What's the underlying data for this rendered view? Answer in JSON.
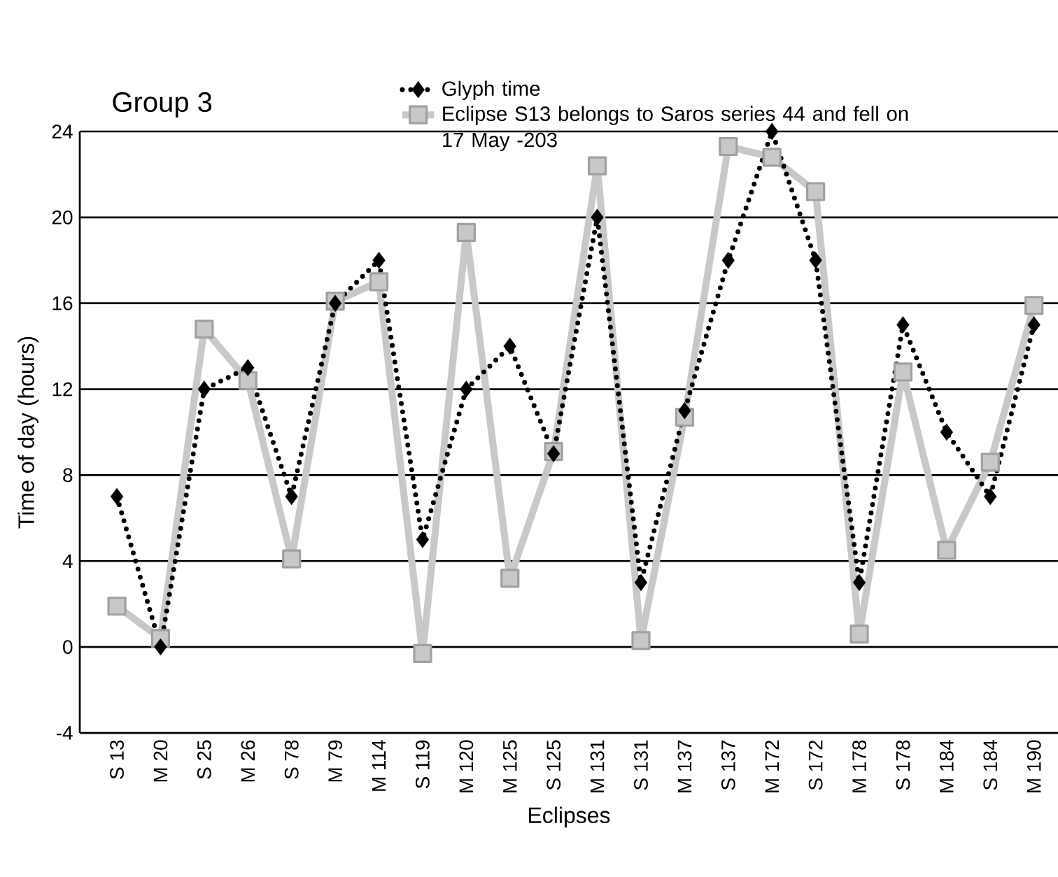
{
  "chart_data": {
    "type": "line",
    "title": "Group 3",
    "xlabel": "Eclipses",
    "ylabel": "Time of day (hours)",
    "categories": [
      "S 13",
      "M 20",
      "S 25",
      "M 26",
      "S 78",
      "M 79",
      "M 114",
      "S 119",
      "M 120",
      "M 125",
      "S 125",
      "M 131",
      "S 131",
      "M 137",
      "S 137",
      "M 172",
      "S 172",
      "M 178",
      "S 178",
      "M 184",
      "S 184",
      "M 190"
    ],
    "series": [
      {
        "name": "Glyph time",
        "color": "#000000",
        "marker": "diamond",
        "line_style": "dotted",
        "values": [
          7,
          0,
          12,
          13,
          7,
          16,
          18,
          5,
          12,
          14,
          9,
          20,
          3,
          11,
          18,
          24,
          18,
          3,
          15,
          10,
          7,
          15
        ]
      },
      {
        "name": "Eclipse S13 belongs to Saros series 44 and fell on 17 May -203",
        "color": "#c8c8c8",
        "marker": "square",
        "line_style": "solid",
        "values": [
          1.9,
          0.4,
          14.8,
          12.4,
          4.1,
          16.1,
          17.0,
          -0.3,
          19.3,
          3.2,
          9.1,
          22.4,
          0.3,
          10.7,
          23.3,
          22.8,
          21.2,
          0.6,
          12.8,
          4.5,
          8.6,
          15.9
        ]
      }
    ],
    "ylim": [
      -4,
      24
    ],
    "yticks": [
      -4,
      0,
      4,
      8,
      12,
      16,
      20,
      24
    ],
    "grid": "y",
    "legend": "top"
  }
}
